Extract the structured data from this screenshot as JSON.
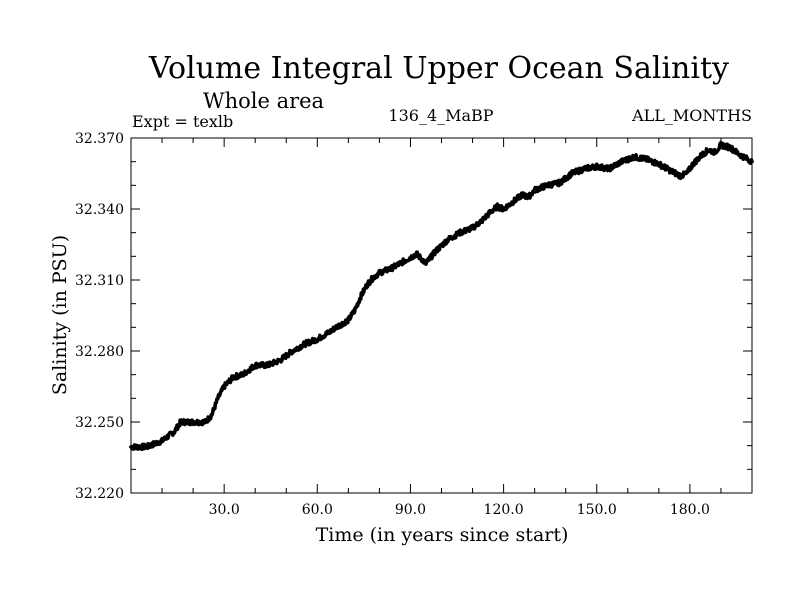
{
  "chart_data": {
    "type": "line",
    "title": "Volume Integral Upper Ocean Salinity",
    "subtitle": "Whole area",
    "experiment_label": "Expt = texlb",
    "run_label": "136_4_MaBP",
    "months_label": "ALL_MONTHS",
    "xlabel": "Time (in years since start)",
    "ylabel": "Salinity (in PSU)",
    "xlim": [
      0,
      200
    ],
    "ylim": [
      32.22,
      32.37
    ],
    "x_ticks": [
      30,
      60,
      90,
      120,
      150,
      180
    ],
    "x_tick_labels": [
      "30.0",
      "60.0",
      "90.0",
      "120.0",
      "150.0",
      "180.0"
    ],
    "y_ticks": [
      32.22,
      32.25,
      32.28,
      32.31,
      32.34,
      32.37
    ],
    "y_tick_labels": [
      "32.220",
      "32.250",
      "32.280",
      "32.310",
      "32.340",
      "32.370"
    ],
    "grid": false,
    "series": [
      {
        "name": "salinity",
        "x": [
          0,
          5,
          10,
          14,
          16,
          20,
          24,
          26,
          28,
          30,
          33,
          36,
          38,
          40,
          44,
          48,
          52,
          56,
          60,
          64,
          66,
          70,
          72,
          74,
          76,
          78,
          80,
          84,
          88,
          92,
          95,
          98,
          102,
          106,
          110,
          113,
          116,
          118,
          120,
          122,
          126,
          128,
          130,
          134,
          138,
          142,
          146,
          150,
          154,
          158,
          162,
          166,
          170,
          174,
          177,
          179,
          181,
          184,
          186,
          188,
          190,
          193,
          196,
          200
        ],
        "y": [
          32.2395,
          32.2395,
          32.242,
          32.246,
          32.25,
          32.25,
          32.25,
          32.253,
          32.26,
          32.265,
          32.269,
          32.27,
          32.272,
          32.274,
          32.274,
          32.276,
          32.28,
          32.283,
          32.285,
          32.288,
          32.29,
          32.293,
          32.297,
          32.303,
          32.308,
          32.311,
          32.313,
          32.315,
          32.318,
          32.321,
          32.317,
          32.322,
          32.327,
          32.33,
          32.332,
          32.335,
          32.339,
          32.341,
          32.34,
          32.342,
          32.346,
          32.345,
          32.348,
          32.35,
          32.351,
          32.355,
          32.357,
          32.358,
          32.357,
          32.36,
          32.362,
          32.361,
          32.359,
          32.356,
          32.354,
          32.355,
          32.359,
          32.363,
          32.365,
          32.364,
          32.367,
          32.366,
          32.363,
          32.36
        ]
      }
    ]
  }
}
